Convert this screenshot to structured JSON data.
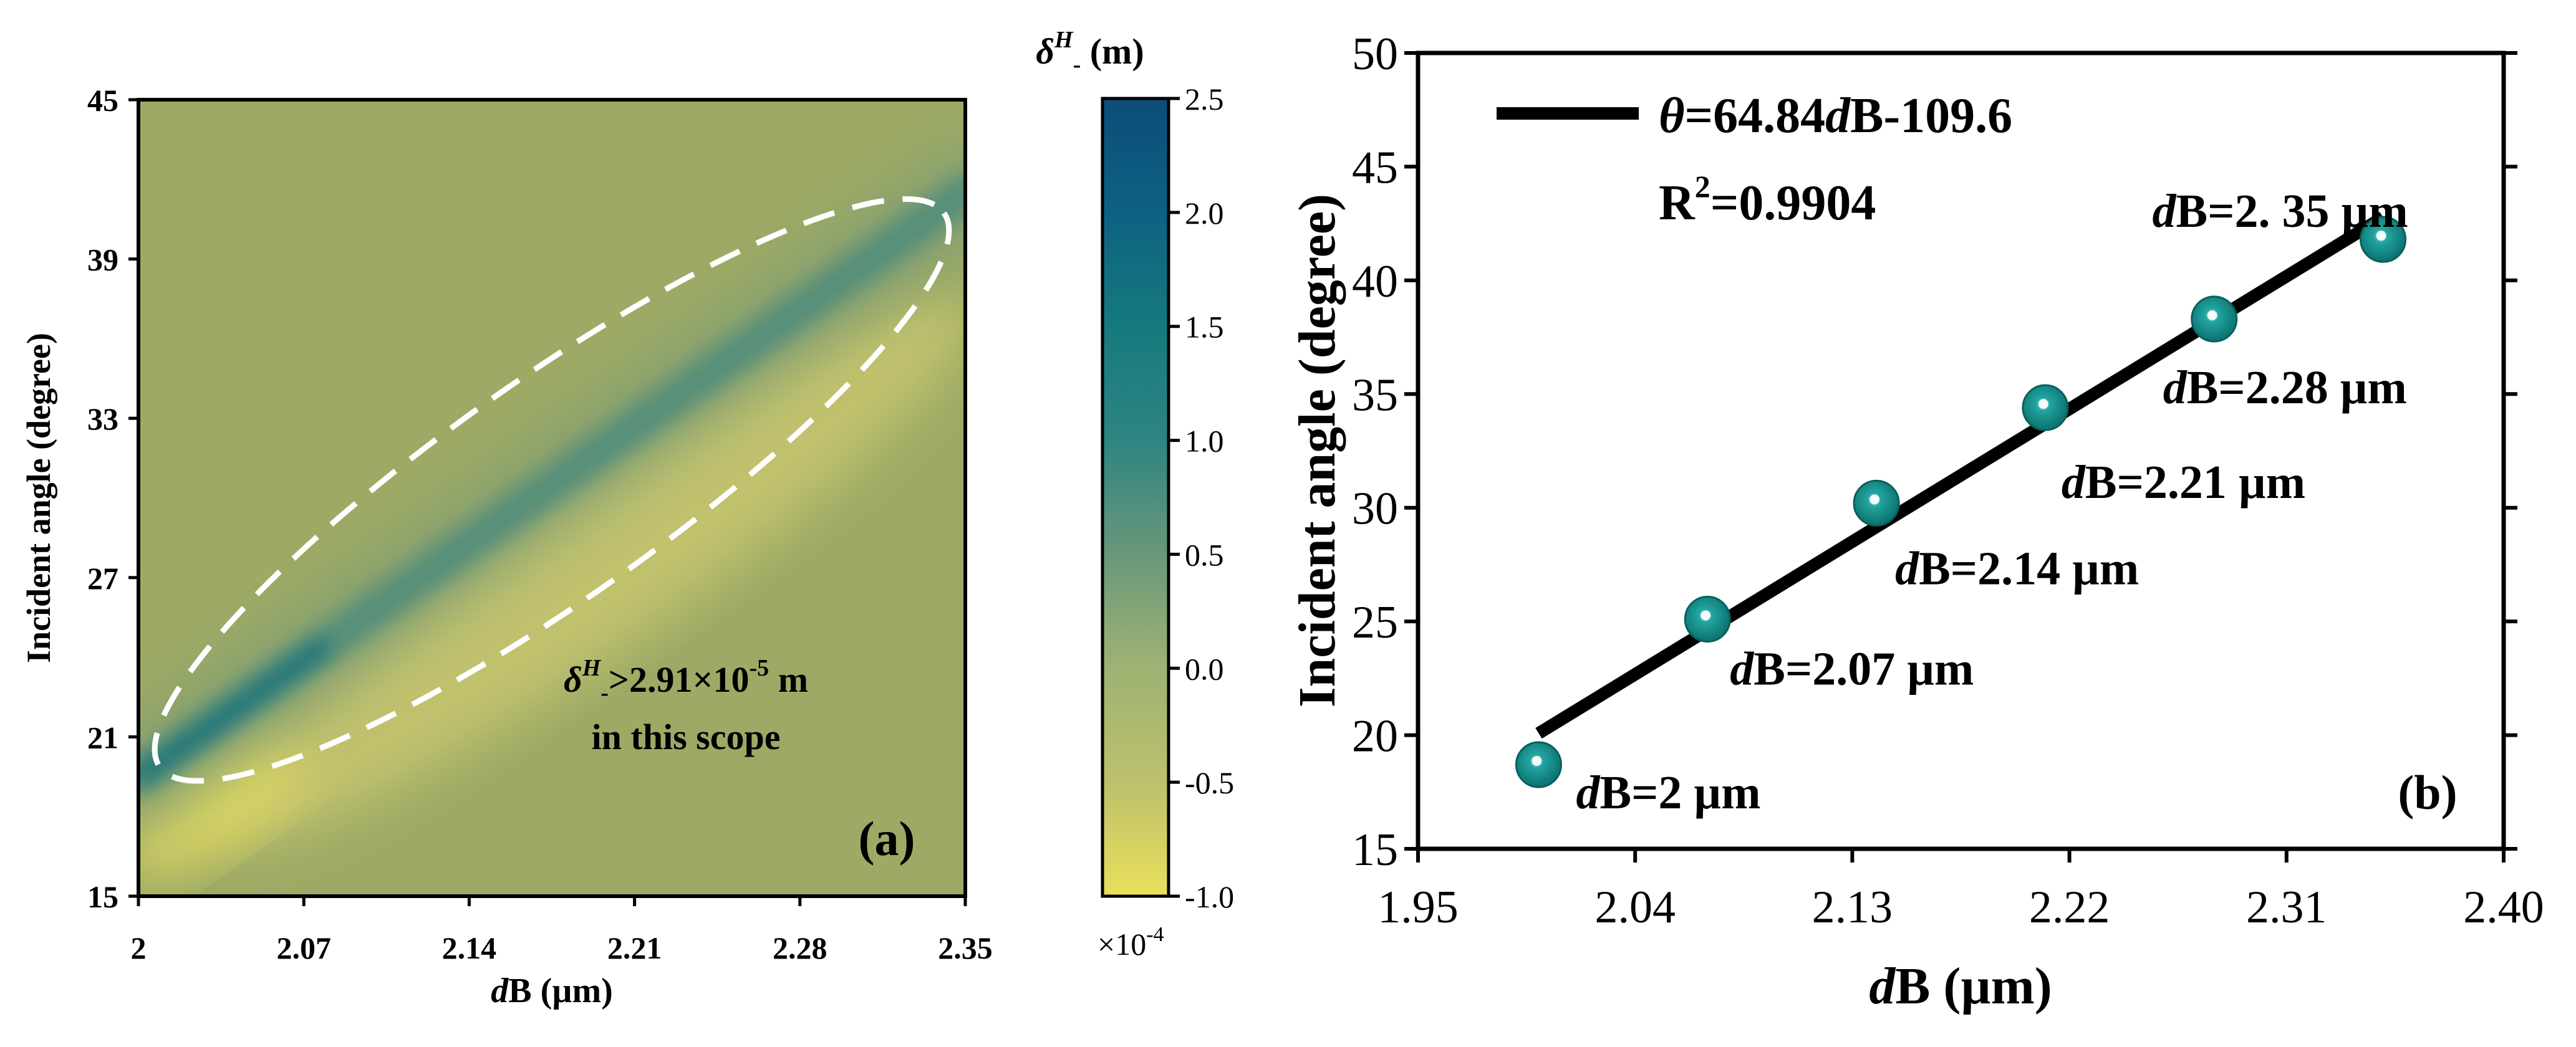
{
  "chart_data": [
    {
      "id": "a",
      "type": "heatmap",
      "panel_label": "(a)",
      "xlabel_italic": "d",
      "xlabel_rest": "B (µm)",
      "ylabel": "Incident angle (degree)",
      "xlim": [
        2,
        2.35
      ],
      "ylim": [
        15,
        45
      ],
      "xticks": [
        2,
        2.07,
        2.14,
        2.21,
        2.28,
        2.35
      ],
      "xtick_labels": [
        "2",
        "2.07",
        "2.14",
        "2.21",
        "2.28",
        "2.35"
      ],
      "yticks": [
        15,
        21,
        27,
        33,
        39,
        45
      ],
      "ytick_labels": [
        "15",
        "21",
        "27",
        "33",
        "39",
        "45"
      ],
      "ridge": {
        "start": {
          "x": 2.0,
          "y": 19.5
        },
        "end": {
          "x": 2.35,
          "y": 41.5
        },
        "description": "band of high values along the fitted line"
      },
      "highlight_ellipse": {
        "center": {
          "x": 2.175,
          "y": 30.3
        },
        "style": "white dashed"
      },
      "annotation": {
        "sym": "δ",
        "sup1": "H",
        "sub1": "-",
        "middle": ">2.91×10",
        "sup2": "-5",
        "unit": " m",
        "line2": "in this scope"
      },
      "colorbar": {
        "label_sym": "δ",
        "label_sup": "H",
        "label_sub": "-",
        "label_unit": " (m)",
        "range": [
          -1.0,
          2.5
        ],
        "ticks": [
          -1.0,
          -0.5,
          0.0,
          0.5,
          1.0,
          1.5,
          2.0,
          2.5
        ],
        "tick_labels": [
          "-1.0",
          "-0.5",
          "0.0",
          "0.5",
          "1.0",
          "1.5",
          "2.0",
          "2.5"
        ],
        "scale_base": "×10",
        "scale_exp": "-4",
        "colors": [
          "#e9e05a",
          "#bdc16c",
          "#9db273",
          "#69977a",
          "#2e8582",
          "#167a7e",
          "#0d6182",
          "#0b4d7a"
        ]
      },
      "colors": {
        "background": "#9daa65"
      }
    },
    {
      "id": "b",
      "type": "scatter",
      "panel_label": "(b)",
      "xlabel_italic": "d",
      "xlabel_rest": "B (µm)",
      "ylabel": "Incident angle (degree)",
      "xlim": [
        1.95,
        2.4
      ],
      "ylim": [
        15,
        50
      ],
      "xticks": [
        1.95,
        2.04,
        2.13,
        2.22,
        2.31,
        2.4
      ],
      "xtick_labels": [
        "1.95",
        "2.04",
        "2.13",
        "2.22",
        "2.31",
        "2.40"
      ],
      "yticks": [
        15,
        20,
        25,
        30,
        35,
        40,
        45,
        50
      ],
      "ytick_labels": [
        "15",
        "20",
        "25",
        "30",
        "35",
        "40",
        "45",
        "50"
      ],
      "points": [
        {
          "x": 2.0,
          "y": 18.7,
          "label_italic": "d",
          "label_rest": "B=2 µm"
        },
        {
          "x": 2.07,
          "y": 25.1,
          "label_italic": "d",
          "label_rest": "B=2.07 µm"
        },
        {
          "x": 2.14,
          "y": 30.2,
          "label_italic": "d",
          "label_rest": "B=2.14 µm"
        },
        {
          "x": 2.21,
          "y": 34.4,
          "label_italic": "d",
          "label_rest": "B=2.21 µm"
        },
        {
          "x": 2.28,
          "y": 38.3,
          "label_italic": "d",
          "label_rest": "B=2.28 µm"
        },
        {
          "x": 2.35,
          "y": 41.8,
          "label_italic": "d",
          "label_rest": "B=2. 35 µm"
        }
      ],
      "fit": {
        "slope": 64.84,
        "intercept": -109.6,
        "x_range": [
          2.0,
          2.35
        ],
        "legend_italic1": "θ",
        "legend_mid": "=64.84",
        "legend_italic2": "d",
        "legend_rest": "B-109.6",
        "r2_prefix": "R",
        "r2_sup": "2",
        "r2_value": "=0.9904"
      },
      "colors": {
        "marker": "#0e8a87",
        "marker_edge": "#0a5f5d",
        "line": "#000000"
      }
    }
  ]
}
